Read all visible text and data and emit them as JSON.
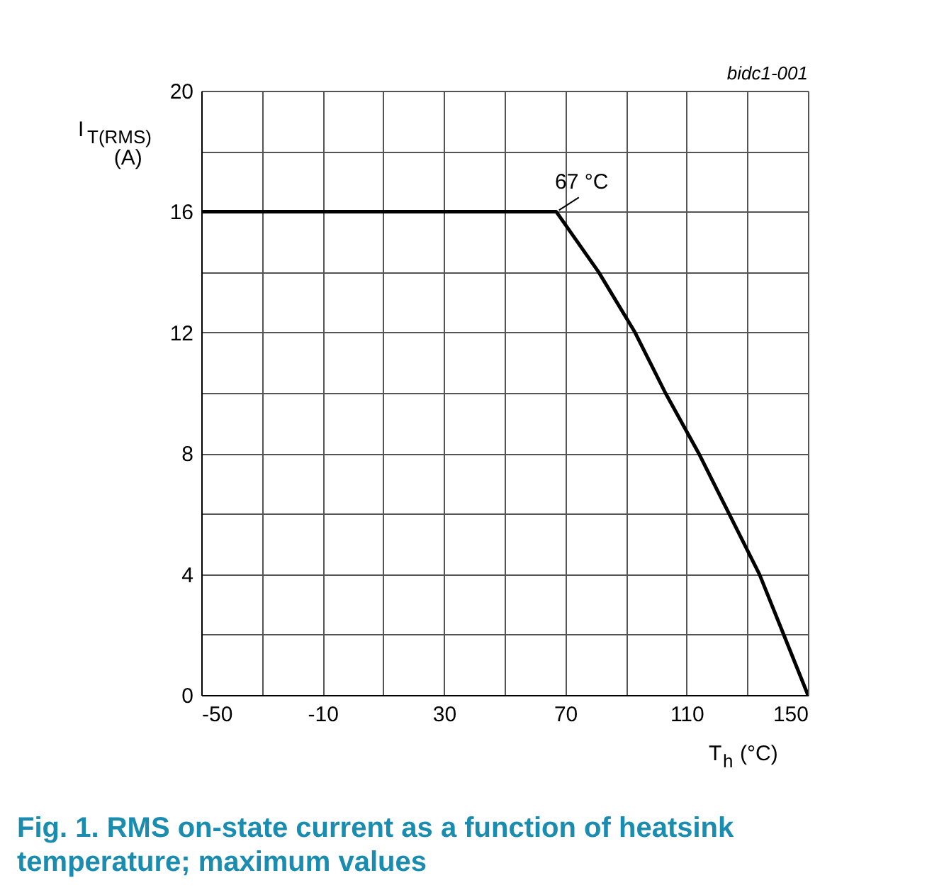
{
  "chart_data": {
    "type": "line",
    "title": "Fig. 1. RMS on-state current as a function of  heatsink temperature; maximum values",
    "xlabel": "T$_{h}$ (°C)",
    "ylabel": "I$_{T(RMS)}$ (A)",
    "x": [
      -50,
      67,
      81,
      93,
      103,
      114,
      124,
      134,
      142,
      150
    ],
    "series": [
      {
        "color": "#000000",
        "values": [
          16,
          16,
          14,
          12,
          10,
          8,
          6,
          4,
          2,
          0
        ]
      }
    ],
    "xlim": [
      -50,
      150
    ],
    "ylim": [
      0,
      20
    ],
    "xticks": [
      -50,
      {
        "value": -30,
        "label": null
      },
      -10,
      {
        "value": 10,
        "label": null
      },
      30,
      {
        "value": 50,
        "label": null
      },
      70,
      {
        "value": 90,
        "label": null
      },
      110,
      {
        "value": 130,
        "label": null
      },
      150
    ],
    "yticks": [
      0,
      {
        "value": 2,
        "label": null
      },
      4,
      {
        "value": 6,
        "label": null
      },
      8,
      {
        "value": 10,
        "label": null
      },
      12,
      {
        "value": 14,
        "label": null
      },
      16,
      {
        "value": 18,
        "label": null
      },
      20
    ],
    "grid": true,
    "annotations": [
      {
        "text": "67 °C",
        "x": 67,
        "y": 16
      },
      "bidc1-001"
    ]
  }
}
